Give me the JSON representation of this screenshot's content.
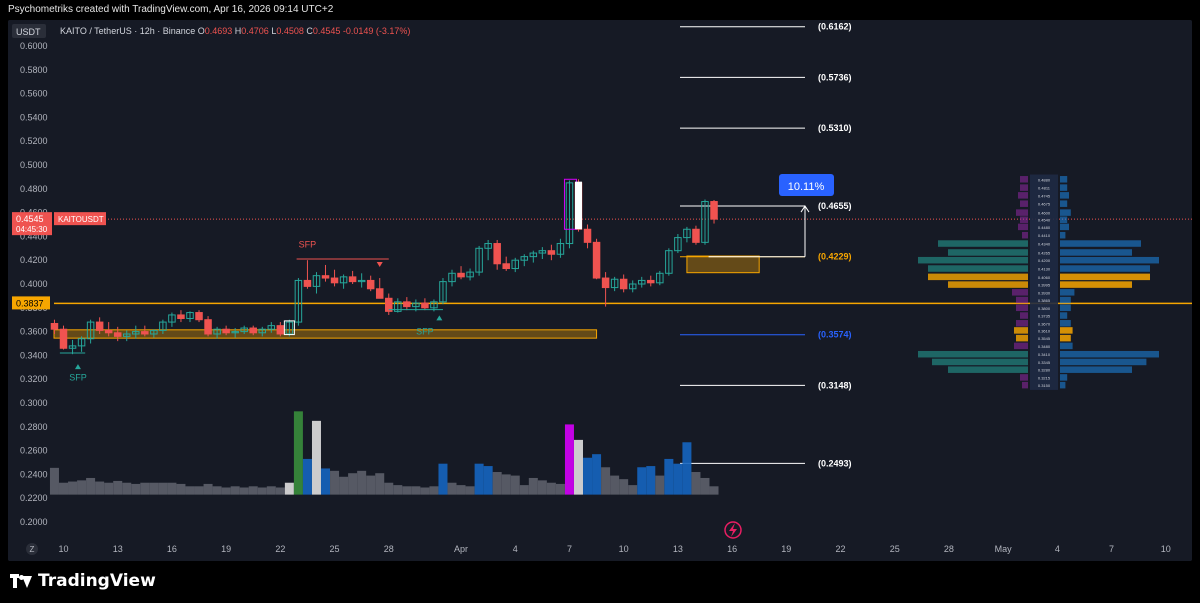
{
  "header": {
    "caption": "Psychometriks created with TradingView.com, Apr 16, 2026 09:14 UTC+2"
  },
  "footer": {
    "logo_text": "TradingView",
    "logo_icon": "tradingview-logo-icon"
  },
  "chart_data": {
    "type": "candlestick",
    "currency_badge": "USDT",
    "symbol_line": {
      "title": "KAITO / TetherUS · 12h · Binance",
      "o_label": "O",
      "o_value": "0.4693",
      "h_label": "H",
      "h_value": "0.4706",
      "l_label": "L",
      "l_value": "0.4508",
      "c_label": "C",
      "c_value": "0.4545",
      "change": "-0.0149 (-3.17%)"
    },
    "y_axis": {
      "range": [
        0.19,
        0.62
      ],
      "ticks": [
        "0.6000",
        "0.5800",
        "0.5600",
        "0.5400",
        "0.5200",
        "0.5000",
        "0.4800",
        "0.4600",
        "0.4400",
        "0.4200",
        "0.4000",
        "0.3800",
        "0.3600",
        "0.3400",
        "0.3200",
        "0.3000",
        "0.2800",
        "0.2600",
        "0.2400",
        "0.2200",
        "0.2000"
      ]
    },
    "x_axis": {
      "labels": [
        {
          "d": 10,
          "text": "10"
        },
        {
          "d": 13,
          "text": "13"
        },
        {
          "d": 16,
          "text": "16"
        },
        {
          "d": 19,
          "text": "19"
        },
        {
          "d": 22,
          "text": "22"
        },
        {
          "d": 25,
          "text": "25"
        },
        {
          "d": 28,
          "text": "28"
        },
        {
          "d": 32,
          "text": "Apr"
        },
        {
          "d": 35,
          "text": "4"
        },
        {
          "d": 38,
          "text": "7"
        },
        {
          "d": 41,
          "text": "10"
        },
        {
          "d": 44,
          "text": "13"
        },
        {
          "d": 47,
          "text": "16"
        },
        {
          "d": 50,
          "text": "19"
        },
        {
          "d": 53,
          "text": "22"
        },
        {
          "d": 56,
          "text": "25"
        },
        {
          "d": 59,
          "text": "28"
        },
        {
          "d": 62,
          "text": "May"
        },
        {
          "d": 65,
          "text": "4"
        },
        {
          "d": 68,
          "text": "7"
        },
        {
          "d": 71,
          "text": "10"
        }
      ],
      "timezone_icon": "Z"
    },
    "price_tag": {
      "value": 0.4545,
      "label": "0.4545",
      "countdown": "04:45:30",
      "symbol": "KAITOUSDT"
    },
    "horizontal_level": {
      "value": 0.3837,
      "label": "0.3837"
    },
    "fib_levels": [
      {
        "value": 0.6162,
        "label": "(0.6162)",
        "color": "#ffffff"
      },
      {
        "value": 0.5736,
        "label": "(0.5736)",
        "color": "#ffffff"
      },
      {
        "value": 0.531,
        "label": "(0.5310)",
        "color": "#ffffff"
      },
      {
        "value": 0.4655,
        "label": "(0.4655)",
        "color": "#ffffff"
      },
      {
        "value": 0.4229,
        "label": "(0.4229)",
        "color": "#f7a600"
      },
      {
        "value": 0.3574,
        "label": "(0.3574)",
        "color": "#2962ff"
      },
      {
        "value": 0.3148,
        "label": "(0.3148)",
        "color": "#ffffff"
      },
      {
        "value": 0.2493,
        "label": "(0.2493)",
        "color": "#ffffff"
      }
    ],
    "measure_label": "10.11%",
    "annotations": [
      {
        "text": "SFP",
        "d": 10.8,
        "value": 0.319,
        "color": "#26a69a"
      },
      {
        "text": "SFP",
        "d": 23.5,
        "value": 0.4305,
        "color": "#ef5350"
      },
      {
        "text": "SFP",
        "d": 30,
        "value": 0.3575,
        "color": "#26a69a"
      }
    ],
    "zones": [
      {
        "d0": 0,
        "d1": 39.5,
        "v0": 0.3545,
        "v1": 0.3615,
        "color": "#f7a600"
      },
      {
        "d0": 44.5,
        "d1": 48.5,
        "v0": 0.4095,
        "v1": 0.4235,
        "color": "#f7a600"
      }
    ],
    "candles": [
      [
        9.5,
        0.3668,
        0.37,
        0.358,
        0.362
      ],
      [
        10,
        0.362,
        0.365,
        0.345,
        0.346
      ],
      [
        10.5,
        0.346,
        0.353,
        0.341,
        0.348
      ],
      [
        11,
        0.348,
        0.356,
        0.343,
        0.354
      ],
      [
        11.5,
        0.354,
        0.37,
        0.35,
        0.368
      ],
      [
        12,
        0.368,
        0.372,
        0.358,
        0.361
      ],
      [
        12.5,
        0.361,
        0.368,
        0.356,
        0.359
      ],
      [
        13,
        0.359,
        0.364,
        0.352,
        0.356
      ],
      [
        13.5,
        0.356,
        0.361,
        0.352,
        0.358
      ],
      [
        14,
        0.358,
        0.365,
        0.354,
        0.36
      ],
      [
        14.5,
        0.36,
        0.365,
        0.356,
        0.358
      ],
      [
        15,
        0.358,
        0.362,
        0.355,
        0.361
      ],
      [
        15.5,
        0.361,
        0.37,
        0.358,
        0.368
      ],
      [
        16,
        0.368,
        0.376,
        0.364,
        0.374
      ],
      [
        16.5,
        0.374,
        0.378,
        0.368,
        0.371
      ],
      [
        17,
        0.371,
        0.377,
        0.368,
        0.376
      ],
      [
        17.5,
        0.376,
        0.378,
        0.368,
        0.37
      ],
      [
        18,
        0.37,
        0.373,
        0.356,
        0.358
      ],
      [
        18.5,
        0.358,
        0.364,
        0.354,
        0.362
      ],
      [
        19,
        0.362,
        0.365,
        0.357,
        0.359
      ],
      [
        19.5,
        0.359,
        0.363,
        0.355,
        0.36
      ],
      [
        20,
        0.36,
        0.365,
        0.358,
        0.363
      ],
      [
        20.5,
        0.363,
        0.365,
        0.357,
        0.359
      ],
      [
        21,
        0.359,
        0.364,
        0.356,
        0.362
      ],
      [
        21.5,
        0.362,
        0.368,
        0.359,
        0.365
      ],
      [
        22,
        0.365,
        0.368,
        0.356,
        0.358
      ],
      [
        22.5,
        0.358,
        0.37,
        0.356,
        0.368
      ],
      [
        23,
        0.368,
        0.405,
        0.365,
        0.403
      ],
      [
        23.5,
        0.403,
        0.42,
        0.396,
        0.398
      ],
      [
        24,
        0.398,
        0.41,
        0.392,
        0.407
      ],
      [
        24.5,
        0.407,
        0.416,
        0.402,
        0.405
      ],
      [
        25,
        0.405,
        0.412,
        0.398,
        0.401
      ],
      [
        25.5,
        0.401,
        0.408,
        0.396,
        0.406
      ],
      [
        26,
        0.406,
        0.411,
        0.4,
        0.402
      ],
      [
        26.5,
        0.402,
        0.409,
        0.397,
        0.403
      ],
      [
        27,
        0.403,
        0.407,
        0.394,
        0.396
      ],
      [
        27.5,
        0.396,
        0.405,
        0.39,
        0.388
      ],
      [
        28,
        0.388,
        0.392,
        0.374,
        0.377
      ],
      [
        28.5,
        0.377,
        0.388,
        0.376,
        0.385
      ],
      [
        29,
        0.385,
        0.389,
        0.378,
        0.381
      ],
      [
        29.5,
        0.381,
        0.387,
        0.377,
        0.384
      ],
      [
        30,
        0.384,
        0.388,
        0.378,
        0.38
      ],
      [
        30.5,
        0.38,
        0.387,
        0.377,
        0.385
      ],
      [
        31,
        0.385,
        0.405,
        0.383,
        0.402
      ],
      [
        31.5,
        0.402,
        0.412,
        0.398,
        0.409
      ],
      [
        32,
        0.409,
        0.415,
        0.404,
        0.406
      ],
      [
        32.5,
        0.406,
        0.413,
        0.403,
        0.41
      ],
      [
        33,
        0.41,
        0.432,
        0.407,
        0.43
      ],
      [
        33.5,
        0.43,
        0.437,
        0.42,
        0.434
      ],
      [
        34,
        0.434,
        0.437,
        0.412,
        0.417
      ],
      [
        34.5,
        0.417,
        0.423,
        0.411,
        0.413
      ],
      [
        35,
        0.413,
        0.422,
        0.41,
        0.42
      ],
      [
        35.5,
        0.42,
        0.425,
        0.415,
        0.423
      ],
      [
        36,
        0.423,
        0.428,
        0.418,
        0.426
      ],
      [
        36.5,
        0.426,
        0.431,
        0.421,
        0.428
      ],
      [
        37,
        0.428,
        0.433,
        0.42,
        0.425
      ],
      [
        37.5,
        0.425,
        0.438,
        0.422,
        0.434
      ],
      [
        38,
        0.434,
        0.487,
        0.43,
        0.485
      ],
      [
        38.5,
        0.485,
        0.488,
        0.444,
        0.446
      ],
      [
        39,
        0.446,
        0.45,
        0.43,
        0.435
      ],
      [
        39.5,
        0.435,
        0.438,
        0.404,
        0.405
      ],
      [
        40,
        0.405,
        0.41,
        0.381,
        0.397
      ],
      [
        40.5,
        0.397,
        0.406,
        0.394,
        0.404
      ],
      [
        41,
        0.404,
        0.408,
        0.393,
        0.396
      ],
      [
        41.5,
        0.396,
        0.403,
        0.393,
        0.4
      ],
      [
        42,
        0.4,
        0.406,
        0.397,
        0.403
      ],
      [
        42.5,
        0.403,
        0.407,
        0.398,
        0.401
      ],
      [
        43,
        0.401,
        0.411,
        0.399,
        0.409
      ],
      [
        43.5,
        0.409,
        0.43,
        0.407,
        0.428
      ],
      [
        44,
        0.428,
        0.442,
        0.426,
        0.439
      ],
      [
        44.5,
        0.439,
        0.448,
        0.435,
        0.446
      ],
      [
        45,
        0.446,
        0.449,
        0.433,
        0.435
      ],
      [
        45.5,
        0.435,
        0.471,
        0.433,
        0.4693
      ],
      [
        46,
        0.4693,
        0.4706,
        0.4508,
        0.4545
      ]
    ],
    "volume_bars": [
      {
        "d": 9.5,
        "vol": 0.2455,
        "kind": "gray"
      },
      {
        "d": 10,
        "vol": 0.233,
        "kind": "gray"
      },
      {
        "d": 10.5,
        "vol": 0.234,
        "kind": "gray"
      },
      {
        "d": 11,
        "vol": 0.235,
        "kind": "gray"
      },
      {
        "d": 11.5,
        "vol": 0.237,
        "kind": "gray"
      },
      {
        "d": 12,
        "vol": 0.234,
        "kind": "gray"
      },
      {
        "d": 12.5,
        "vol": 0.233,
        "kind": "gray"
      },
      {
        "d": 13,
        "vol": 0.2345,
        "kind": "gray"
      },
      {
        "d": 13.5,
        "vol": 0.233,
        "kind": "gray"
      },
      {
        "d": 14,
        "vol": 0.232,
        "kind": "gray"
      },
      {
        "d": 14.5,
        "vol": 0.233,
        "kind": "gray"
      },
      {
        "d": 15,
        "vol": 0.233,
        "kind": "gray"
      },
      {
        "d": 15.5,
        "vol": 0.233,
        "kind": "gray"
      },
      {
        "d": 16,
        "vol": 0.233,
        "kind": "gray"
      },
      {
        "d": 16.5,
        "vol": 0.232,
        "kind": "gray"
      },
      {
        "d": 17,
        "vol": 0.23,
        "kind": "gray"
      },
      {
        "d": 17.5,
        "vol": 0.23,
        "kind": "gray"
      },
      {
        "d": 18,
        "vol": 0.232,
        "kind": "gray"
      },
      {
        "d": 18.5,
        "vol": 0.23,
        "kind": "gray"
      },
      {
        "d": 19,
        "vol": 0.229,
        "kind": "gray"
      },
      {
        "d": 19.5,
        "vol": 0.23,
        "kind": "gray"
      },
      {
        "d": 20,
        "vol": 0.229,
        "kind": "gray"
      },
      {
        "d": 20.5,
        "vol": 0.23,
        "kind": "gray"
      },
      {
        "d": 21,
        "vol": 0.229,
        "kind": "gray"
      },
      {
        "d": 21.5,
        "vol": 0.23,
        "kind": "gray"
      },
      {
        "d": 22,
        "vol": 0.229,
        "kind": "gray"
      },
      {
        "d": 22.5,
        "vol": 0.233,
        "kind": "white"
      },
      {
        "d": 23,
        "vol": 0.293,
        "kind": "green"
      },
      {
        "d": 23.5,
        "vol": 0.253,
        "kind": "blue"
      },
      {
        "d": 24,
        "vol": 0.285,
        "kind": "white"
      },
      {
        "d": 24.5,
        "vol": 0.245,
        "kind": "blue"
      },
      {
        "d": 25,
        "vol": 0.243,
        "kind": "gray"
      },
      {
        "d": 25.5,
        "vol": 0.238,
        "kind": "gray"
      },
      {
        "d": 26,
        "vol": 0.241,
        "kind": "gray"
      },
      {
        "d": 26.5,
        "vol": 0.243,
        "kind": "gray"
      },
      {
        "d": 27,
        "vol": 0.239,
        "kind": "gray"
      },
      {
        "d": 27.5,
        "vol": 0.241,
        "kind": "gray"
      },
      {
        "d": 28,
        "vol": 0.233,
        "kind": "gray"
      },
      {
        "d": 28.5,
        "vol": 0.231,
        "kind": "gray"
      },
      {
        "d": 29,
        "vol": 0.23,
        "kind": "gray"
      },
      {
        "d": 29.5,
        "vol": 0.23,
        "kind": "gray"
      },
      {
        "d": 30,
        "vol": 0.229,
        "kind": "gray"
      },
      {
        "d": 30.5,
        "vol": 0.23,
        "kind": "gray"
      },
      {
        "d": 31,
        "vol": 0.249,
        "kind": "blue"
      },
      {
        "d": 31.5,
        "vol": 0.233,
        "kind": "gray"
      },
      {
        "d": 32,
        "vol": 0.231,
        "kind": "gray"
      },
      {
        "d": 32.5,
        "vol": 0.23,
        "kind": "gray"
      },
      {
        "d": 33,
        "vol": 0.249,
        "kind": "blue"
      },
      {
        "d": 33.5,
        "vol": 0.247,
        "kind": "blue"
      },
      {
        "d": 34,
        "vol": 0.242,
        "kind": "gray"
      },
      {
        "d": 34.5,
        "vol": 0.24,
        "kind": "gray"
      },
      {
        "d": 35,
        "vol": 0.239,
        "kind": "gray"
      },
      {
        "d": 35.5,
        "vol": 0.231,
        "kind": "gray"
      },
      {
        "d": 36,
        "vol": 0.237,
        "kind": "gray"
      },
      {
        "d": 36.5,
        "vol": 0.235,
        "kind": "gray"
      },
      {
        "d": 37,
        "vol": 0.233,
        "kind": "gray"
      },
      {
        "d": 37.5,
        "vol": 0.232,
        "kind": "gray"
      },
      {
        "d": 38,
        "vol": 0.282,
        "kind": "magenta"
      },
      {
        "d": 38.5,
        "vol": 0.269,
        "kind": "white"
      },
      {
        "d": 39,
        "vol": 0.254,
        "kind": "blue"
      },
      {
        "d": 39.5,
        "vol": 0.257,
        "kind": "blue"
      },
      {
        "d": 40,
        "vol": 0.246,
        "kind": "gray"
      },
      {
        "d": 40.5,
        "vol": 0.239,
        "kind": "gray"
      },
      {
        "d": 41,
        "vol": 0.236,
        "kind": "gray"
      },
      {
        "d": 41.5,
        "vol": 0.231,
        "kind": "gray"
      },
      {
        "d": 42,
        "vol": 0.246,
        "kind": "blue"
      },
      {
        "d": 42.5,
        "vol": 0.247,
        "kind": "blue"
      },
      {
        "d": 43,
        "vol": 0.239,
        "kind": "gray"
      },
      {
        "d": 43.5,
        "vol": 0.253,
        "kind": "blue"
      },
      {
        "d": 44,
        "vol": 0.249,
        "kind": "blue"
      },
      {
        "d": 44.5,
        "vol": 0.267,
        "kind": "blue"
      },
      {
        "d": 45,
        "vol": 0.242,
        "kind": "gray"
      },
      {
        "d": 45.5,
        "vol": 0.237,
        "kind": "gray"
      },
      {
        "d": 46,
        "vol": 0.23,
        "kind": "gray"
      }
    ],
    "volume_baseline": 0.223,
    "volume_profile": [
      {
        "p": 0.488,
        "w": 4
      },
      {
        "p": 0.481,
        "w": 4
      },
      {
        "p": 0.4745,
        "w": 5
      },
      {
        "p": 0.4675,
        "w": 4
      },
      {
        "p": 0.46,
        "w": 6
      },
      {
        "p": 0.454,
        "w": 4
      },
      {
        "p": 0.448,
        "w": 5
      },
      {
        "p": 0.441,
        "w": 3
      },
      {
        "p": 0.434,
        "w": 45,
        "up": true
      },
      {
        "p": 0.4265,
        "w": 40,
        "up": true
      },
      {
        "p": 0.42,
        "w": 55,
        "up": true
      },
      {
        "p": 0.413,
        "w": 50,
        "up": true
      },
      {
        "p": 0.406,
        "w": 50,
        "up": true,
        "poc": true
      },
      {
        "p": 0.3995,
        "w": 40,
        "up": true,
        "poc": true
      },
      {
        "p": 0.393,
        "w": 8
      },
      {
        "p": 0.3865,
        "w": 6
      },
      {
        "p": 0.38,
        "w": 6
      },
      {
        "p": 0.3735,
        "w": 4
      },
      {
        "p": 0.367,
        "w": 6
      },
      {
        "p": 0.361,
        "w": 7,
        "poc": true
      },
      {
        "p": 0.3545,
        "w": 6,
        "poc": true
      },
      {
        "p": 0.348,
        "w": 7
      },
      {
        "p": 0.341,
        "w": 55,
        "up": true
      },
      {
        "p": 0.3345,
        "w": 48,
        "up": true
      },
      {
        "p": 0.328,
        "w": 40,
        "up": true
      },
      {
        "p": 0.3215,
        "w": 4
      },
      {
        "p": 0.315,
        "w": 3
      }
    ],
    "profile_labels": [
      "0.4880",
      "0.4811",
      "0.4745",
      "0.4675",
      "0.4600",
      "0.4540",
      "0.4480",
      "0.4410",
      "0.4340",
      "0.4265",
      "0.4200",
      "0.4130",
      "0.4060",
      "0.3995",
      "0.3930",
      "0.3865",
      "0.3800",
      "0.3735",
      "0.3670",
      "0.3610",
      "0.3545",
      "0.3480",
      "0.3410",
      "0.3345",
      "0.3280",
      "0.3215",
      "0.3150"
    ],
    "colors": {
      "background": "#161a25",
      "up": "#26a69a",
      "down": "#ef5350",
      "volume_gray": "#5d606b",
      "volume_blue": "#1565c0",
      "volume_green": "#388e3c",
      "volume_magenta": "#d500f9",
      "volume_white": "#e0e0e0",
      "hline": "#f7a600",
      "measure_blue": "#2962ff"
    }
  }
}
